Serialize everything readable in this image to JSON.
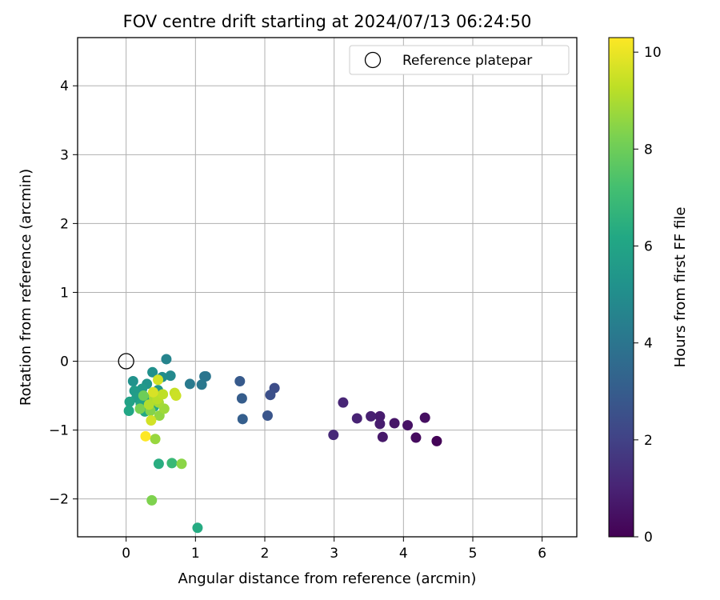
{
  "chart_data": {
    "type": "scatter",
    "title": "FOV centre drift starting at 2024/07/13 06:24:50",
    "xlabel": "Angular distance from reference (arcmin)",
    "ylabel": "Rotation from reference (arcmin)",
    "xlim": [
      -0.7,
      6.5
    ],
    "ylim": [
      -2.55,
      4.7
    ],
    "xticks": [
      0,
      1,
      2,
      3,
      4,
      5,
      6
    ],
    "yticks": [
      -2,
      -1,
      0,
      1,
      2,
      3,
      4
    ],
    "xtick_labels": [
      "0",
      "1",
      "2",
      "3",
      "4",
      "5",
      "6"
    ],
    "ytick_labels": [
      "−2",
      "−1",
      "0",
      "1",
      "2",
      "3",
      "4"
    ],
    "grid": true,
    "legend": {
      "position": "top-right",
      "entries": [
        "Reference platepar"
      ]
    },
    "reference_point": {
      "x": 0.0,
      "y": 0.0,
      "marker": "open-circle",
      "edge_color": "#000000"
    },
    "colorbar": {
      "label": "Hours from first FF file",
      "range": [
        0,
        10.3
      ],
      "ticks": [
        0,
        2,
        4,
        6,
        8,
        10
      ],
      "tick_labels": [
        "0",
        "2",
        "4",
        "6",
        "8",
        "10"
      ],
      "colormap": "viridis"
    },
    "series": [
      {
        "points": [
          {
            "x": 4.48,
            "y": -1.16,
            "c": 0.1
          },
          {
            "x": 4.18,
            "y": -1.11,
            "c": 0.3
          },
          {
            "x": 4.31,
            "y": -0.82,
            "c": 0.4
          },
          {
            "x": 4.06,
            "y": -0.93,
            "c": 0.5
          },
          {
            "x": 3.87,
            "y": -0.9,
            "c": 0.6
          },
          {
            "x": 3.7,
            "y": -1.1,
            "c": 0.7
          },
          {
            "x": 3.66,
            "y": -0.91,
            "c": 0.8
          },
          {
            "x": 3.66,
            "y": -0.8,
            "c": 0.8
          },
          {
            "x": 3.53,
            "y": -0.8,
            "c": 0.9
          },
          {
            "x": 3.33,
            "y": -0.83,
            "c": 1.0
          },
          {
            "x": 3.13,
            "y": -0.6,
            "c": 1.1
          },
          {
            "x": 2.99,
            "y": -1.07,
            "c": 1.2
          },
          {
            "x": 2.14,
            "y": -0.39,
            "c": 2.4
          },
          {
            "x": 2.08,
            "y": -0.49,
            "c": 2.5
          },
          {
            "x": 2.04,
            "y": -0.79,
            "c": 2.7
          },
          {
            "x": 1.64,
            "y": -0.29,
            "c": 2.9
          },
          {
            "x": 1.67,
            "y": -0.54,
            "c": 3.0
          },
          {
            "x": 1.68,
            "y": -0.84,
            "c": 3.1
          },
          {
            "x": 1.15,
            "y": -0.22,
            "c": 4.0
          },
          {
            "x": 1.13,
            "y": -0.22,
            "c": 4.0
          },
          {
            "x": 1.09,
            "y": -0.34,
            "c": 4.1
          },
          {
            "x": 0.92,
            "y": -0.33,
            "c": 4.2
          },
          {
            "x": 0.58,
            "y": 0.03,
            "c": 4.6
          },
          {
            "x": 0.64,
            "y": -0.21,
            "c": 4.8
          },
          {
            "x": 0.52,
            "y": -0.23,
            "c": 5.0
          },
          {
            "x": 0.38,
            "y": -0.16,
            "c": 5.1
          },
          {
            "x": 0.1,
            "y": -0.29,
            "c": 5.2
          },
          {
            "x": 0.3,
            "y": -0.33,
            "c": 5.3
          },
          {
            "x": 0.46,
            "y": -0.42,
            "c": 5.4
          },
          {
            "x": 0.23,
            "y": -0.4,
            "c": 5.5
          },
          {
            "x": 0.12,
            "y": -0.43,
            "c": 5.6
          },
          {
            "x": 0.15,
            "y": -0.53,
            "c": 5.7
          },
          {
            "x": 0.33,
            "y": -0.55,
            "c": 5.8
          },
          {
            "x": 0.05,
            "y": -0.59,
            "c": 5.9
          },
          {
            "x": 0.21,
            "y": -0.62,
            "c": 6.0
          },
          {
            "x": 0.04,
            "y": -0.72,
            "c": 6.1
          },
          {
            "x": 0.27,
            "y": -0.73,
            "c": 6.2
          },
          {
            "x": 0.4,
            "y": -0.66,
            "c": 6.2
          },
          {
            "x": 1.03,
            "y": -2.42,
            "c": 6.3
          },
          {
            "x": 0.47,
            "y": -1.49,
            "c": 6.4
          },
          {
            "x": 0.66,
            "y": -1.48,
            "c": 6.9
          },
          {
            "x": 0.42,
            "y": -1.13,
            "c": 8.7
          },
          {
            "x": 0.8,
            "y": -1.49,
            "c": 8.5
          },
          {
            "x": 0.37,
            "y": -2.02,
            "c": 8.3
          },
          {
            "x": 0.25,
            "y": -0.5,
            "c": 8.0
          },
          {
            "x": 0.2,
            "y": -0.69,
            "c": 8.2
          },
          {
            "x": 0.35,
            "y": -0.72,
            "c": 8.4
          },
          {
            "x": 0.48,
            "y": -0.79,
            "c": 8.6
          },
          {
            "x": 0.55,
            "y": -0.69,
            "c": 8.8
          },
          {
            "x": 0.47,
            "y": -0.6,
            "c": 8.9
          },
          {
            "x": 0.4,
            "y": -0.52,
            "c": 9.0
          },
          {
            "x": 0.33,
            "y": -0.63,
            "c": 9.1
          },
          {
            "x": 0.45,
            "y": -0.55,
            "c": 9.2
          },
          {
            "x": 0.53,
            "y": -0.48,
            "c": 9.3
          },
          {
            "x": 0.7,
            "y": -0.46,
            "c": 9.4
          },
          {
            "x": 0.72,
            "y": -0.5,
            "c": 9.5
          },
          {
            "x": 0.36,
            "y": -0.86,
            "c": 9.6
          },
          {
            "x": 0.46,
            "y": -0.27,
            "c": 9.6
          },
          {
            "x": 0.39,
            "y": -0.45,
            "c": 9.7
          },
          {
            "x": 0.28,
            "y": -1.09,
            "c": 10.3
          }
        ]
      }
    ]
  }
}
